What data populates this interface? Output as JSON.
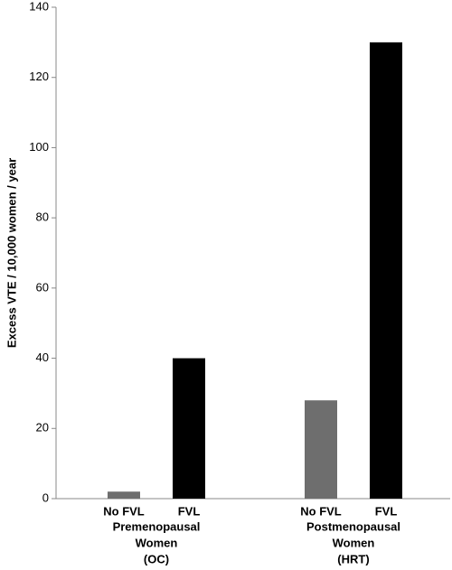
{
  "chart_data": {
    "type": "bar",
    "y_label": "Excess VTE / 10,000 women / year",
    "categories": [
      "No FVL",
      "FVL",
      "No FVL",
      "FVL"
    ],
    "values": [
      2,
      40,
      28,
      130
    ],
    "colors": [
      "#6e6e6e",
      "#000000",
      "#6e6e6e",
      "#000000"
    ],
    "groups": [
      {
        "lines": [
          "Premenopausal",
          "Women",
          "(OC)"
        ]
      },
      {
        "lines": [
          "Postmenopausal",
          "Women",
          "(HRT)"
        ]
      }
    ],
    "ylim": [
      0,
      140
    ],
    "yticks": [
      0,
      20,
      40,
      60,
      80,
      100,
      120,
      140
    ],
    "grid": false
  }
}
